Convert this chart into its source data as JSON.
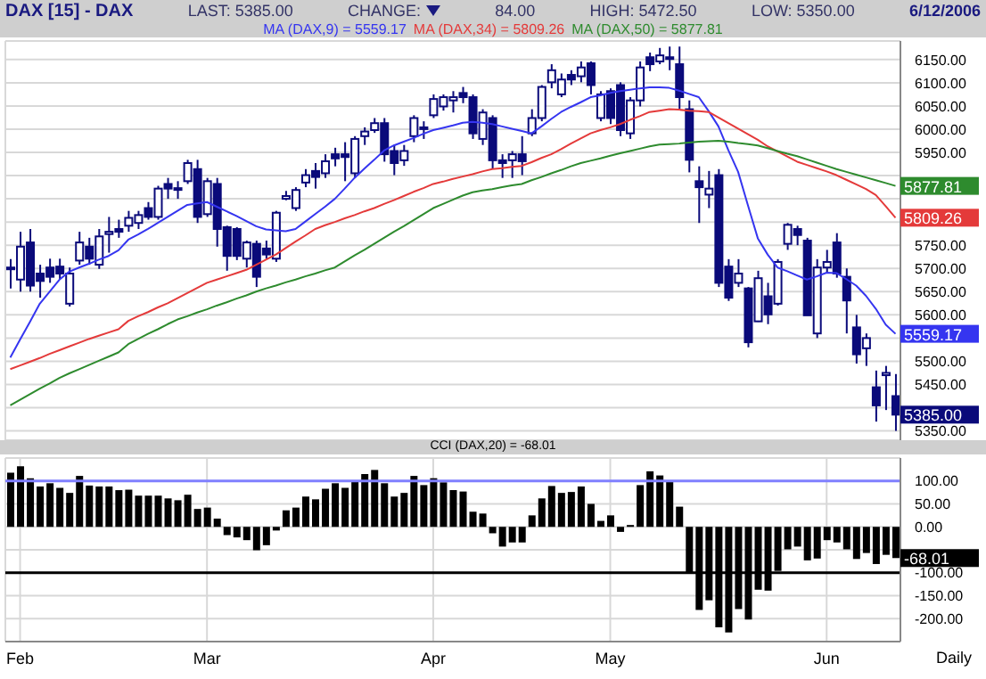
{
  "chart_data": [
    {
      "type": "candlestick",
      "title": "DAX [15] - DAX",
      "color": "#0a0a7a",
      "annotations": [
        "LAST: 5385.00",
        "CHANGE:",
        "84.00",
        "HIGH: 5472.50",
        "LOW: 5350.00",
        "6/12/2006",
        "5385.00"
      ],
      "categories": [
        null,
        null,
        null,
        null,
        null,
        null,
        null,
        null,
        null,
        null,
        null,
        null,
        null,
        null,
        null,
        null,
        null,
        null,
        null,
        null,
        null,
        null,
        null,
        null,
        null,
        null,
        null,
        null,
        null,
        null,
        null,
        null,
        null,
        null,
        null,
        null,
        null,
        null,
        null,
        null,
        null,
        null,
        null,
        null,
        null,
        null,
        null,
        null,
        null,
        null,
        null,
        null,
        null,
        null,
        null,
        null,
        null,
        null,
        null,
        null,
        null,
        null,
        null,
        null,
        null,
        null,
        null,
        null,
        null,
        null,
        null,
        null,
        null,
        null,
        null,
        null,
        null,
        null,
        null,
        null,
        null,
        null,
        null,
        null,
        null,
        null,
        null,
        null,
        null,
        null,
        null
      ],
      "ohlc": [
        [
          5700,
          5720,
          5657,
          5702
        ],
        [
          5676,
          5779,
          5650,
          5747
        ],
        [
          5756,
          5785,
          5650,
          5663
        ],
        [
          5689,
          5708,
          5637,
          5673
        ],
        [
          5702,
          5721,
          5669,
          5682
        ],
        [
          5704,
          5721,
          5676,
          5689
        ],
        [
          5624,
          5702,
          5618,
          5689
        ],
        [
          5717,
          5779,
          5708,
          5756
        ],
        [
          5747,
          5766,
          5708,
          5721
        ],
        [
          5708,
          5785,
          5699,
          5769
        ],
        [
          5774,
          5811,
          5734,
          5779
        ],
        [
          5785,
          5805,
          5766,
          5779
        ],
        [
          5792,
          5824,
          5779,
          5809
        ],
        [
          5798,
          5824,
          5785,
          5815
        ],
        [
          5830,
          5843,
          5805,
          5811
        ],
        [
          5811,
          5878,
          5805,
          5872
        ],
        [
          5882,
          5895,
          5850,
          5872
        ],
        [
          5873,
          5888,
          5850,
          5873
        ],
        [
          5888,
          5934,
          5882,
          5927
        ],
        [
          5914,
          5934,
          5798,
          5811
        ],
        [
          5817,
          5895,
          5811,
          5888
        ],
        [
          5882,
          5895,
          5747,
          5785
        ],
        [
          5789,
          5792,
          5695,
          5727
        ],
        [
          5785,
          5789,
          5718,
          5727
        ],
        [
          5721,
          5760,
          5702,
          5756
        ],
        [
          5753,
          5760,
          5660,
          5682
        ],
        [
          5743,
          5760,
          5721,
          5730
        ],
        [
          5721,
          5824,
          5714,
          5820
        ],
        [
          5850,
          5867,
          5847,
          5856
        ],
        [
          5830,
          5875,
          5824,
          5869
        ],
        [
          5885,
          5914,
          5875,
          5901
        ],
        [
          5910,
          5927,
          5872,
          5897
        ],
        [
          5905,
          5946,
          5895,
          5931
        ],
        [
          5946,
          5960,
          5920,
          5937
        ],
        [
          5946,
          5972,
          5888,
          5940
        ],
        [
          5905,
          5985,
          5895,
          5979
        ],
        [
          5985,
          6004,
          5966,
          5995
        ],
        [
          5998,
          6024,
          5992,
          6013
        ],
        [
          6013,
          6024,
          5930,
          5946
        ],
        [
          5953,
          5966,
          5901,
          5927
        ],
        [
          5933,
          5966,
          5921,
          5953
        ],
        [
          5985,
          6030,
          5972,
          6024
        ],
        [
          6004,
          6017,
          5979,
          6004
        ],
        [
          6030,
          6075,
          6024,
          6065
        ],
        [
          6049,
          6075,
          6040,
          6069
        ],
        [
          6062,
          6082,
          6036,
          6069
        ],
        [
          6078,
          6091,
          6056,
          6069
        ],
        [
          6069,
          6075,
          5979,
          5991
        ],
        [
          5979,
          6043,
          5966,
          6036
        ],
        [
          6024,
          6030,
          5914,
          5933
        ],
        [
          5933,
          5946,
          5895,
          5927
        ],
        [
          5933,
          5953,
          5895,
          5946
        ],
        [
          5946,
          5985,
          5901,
          5931
        ],
        [
          5991,
          6043,
          5985,
          6024
        ],
        [
          6024,
          6095,
          6017,
          6091
        ],
        [
          6101,
          6140,
          6088,
          6127
        ],
        [
          6075,
          6120,
          6069,
          6107
        ],
        [
          6117,
          6127,
          6095,
          6107
        ],
        [
          6114,
          6146,
          6101,
          6133
        ],
        [
          6142,
          6146,
          6075,
          6095
        ],
        [
          6024,
          6082,
          6017,
          6075
        ],
        [
          6082,
          6088,
          6011,
          6024
        ],
        [
          6095,
          6101,
          5985,
          5998
        ],
        [
          5991,
          6069,
          5979,
          6062
        ],
        [
          6062,
          6146,
          6049,
          6133
        ],
        [
          6155,
          6165,
          6125,
          6140
        ],
        [
          6146,
          6175,
          6140,
          6159
        ],
        [
          6153,
          6178,
          6127,
          6155
        ],
        [
          6140,
          6178,
          6043,
          6069
        ],
        [
          6043,
          6062,
          5907,
          5934
        ],
        [
          5888,
          5920,
          5798,
          5875
        ],
        [
          5859,
          5910,
          5830,
          5872
        ],
        [
          5901,
          5914,
          5660,
          5669
        ],
        [
          5704,
          5720,
          5630,
          5637
        ],
        [
          5669,
          5720,
          5660,
          5689
        ],
        [
          5657,
          5660,
          5530,
          5541
        ],
        [
          5586,
          5695,
          5585,
          5679
        ],
        [
          5640,
          5669,
          5580,
          5601
        ],
        [
          5624,
          5720,
          5620,
          5714
        ],
        [
          5753,
          5798,
          5740,
          5794
        ],
        [
          5785,
          5792,
          5750,
          5772
        ],
        [
          5760,
          5766,
          5599,
          5599
        ],
        [
          5560,
          5720,
          5550,
          5702
        ],
        [
          5702,
          5740,
          5690,
          5714
        ],
        [
          5756,
          5776,
          5680,
          5689
        ],
        [
          5682,
          5700,
          5560,
          5631
        ],
        [
          5573,
          5600,
          5495,
          5515
        ],
        [
          5528,
          5560,
          5490,
          5550
        ],
        [
          5444,
          5480,
          5370,
          5405
        ],
        [
          5470,
          5490,
          5395,
          5475
        ],
        [
          5425,
          5472.5,
          5350,
          5385
        ]
      ],
      "series": [
        {
          "type": "line",
          "name": "MA (DAX,9) = 5559.17",
          "color": "#3535f0",
          "values": [
            5508,
            5547,
            5585,
            5624,
            5650,
            5676,
            5693,
            5702,
            5710,
            5719,
            5727,
            5739,
            5762,
            5773,
            5785,
            5798,
            5811,
            5824,
            5837,
            5840,
            5843,
            5833,
            5823,
            5813,
            5802,
            5791,
            5784,
            5782,
            5780,
            5785,
            5801,
            5817,
            5833,
            5850,
            5872,
            5895,
            5915,
            5934,
            5954,
            5965,
            5973,
            5981,
            5990,
            5998,
            6003,
            6008,
            6014,
            6016,
            6014,
            6011,
            6006,
            6001,
            5996,
            5991,
            6006,
            6022,
            6037,
            6048,
            6058,
            6069,
            6073,
            6078,
            6082,
            6085,
            6088,
            6090,
            6090,
            6089,
            6083,
            6076,
            6069,
            6039,
            6006,
            5955,
            5908,
            5836,
            5765,
            5730,
            5702,
            5694,
            5685,
            5676,
            5683,
            5691,
            5690,
            5677,
            5663,
            5641,
            5613,
            5579,
            5559.17
          ],
          "value_labels": [
            null,
            null,
            null,
            null,
            null,
            null,
            null,
            null,
            null,
            null,
            null,
            null,
            null,
            null,
            null,
            null,
            null,
            null,
            null,
            null,
            null,
            null,
            null,
            null,
            null,
            null,
            null,
            null,
            null,
            null,
            null,
            null,
            null,
            null,
            null,
            null,
            null,
            null,
            null,
            null,
            null,
            null,
            null,
            null,
            null,
            null,
            null,
            null,
            null,
            null,
            null,
            null,
            null,
            null,
            null,
            null,
            null,
            null,
            null,
            null,
            null,
            null,
            null,
            null,
            null,
            null,
            null,
            null,
            null,
            null,
            null,
            null,
            null,
            null,
            null,
            null,
            null,
            null,
            null,
            null,
            null,
            null,
            null,
            null,
            null,
            null,
            null,
            null,
            null,
            null,
            "5559.17"
          ]
        },
        {
          "type": "line",
          "name": "MA (DAX,34) = 5809.26",
          "color": "#e43a3a",
          "values": [
            5483,
            5491,
            5499,
            5507,
            5516,
            5524,
            5532,
            5540,
            5548,
            5555,
            5562,
            5569,
            5587,
            5597,
            5606,
            5616,
            5625,
            5636,
            5647,
            5658,
            5669,
            5676,
            5683,
            5690,
            5697,
            5708,
            5719,
            5730,
            5744,
            5758,
            5771,
            5785,
            5793,
            5800,
            5808,
            5815,
            5823,
            5830,
            5839,
            5847,
            5856,
            5865,
            5873,
            5882,
            5887,
            5893,
            5898,
            5903,
            5909,
            5914,
            5916,
            5919,
            5921,
            5929,
            5938,
            5946,
            5957,
            5969,
            5980,
            5991,
            5998,
            6004,
            6011,
            6020,
            6028,
            6037,
            6040,
            6043,
            6042,
            6040,
            6039,
            6037,
            6025,
            6013,
            6001,
            5989,
            5977,
            5963,
            5952,
            5941,
            5930,
            5923,
            5916,
            5909,
            5901,
            5891,
            5881,
            5871,
            5858,
            5834,
            5809.26
          ],
          "value_labels": [
            null,
            null,
            null,
            null,
            null,
            null,
            null,
            null,
            null,
            null,
            null,
            null,
            null,
            null,
            null,
            null,
            null,
            null,
            null,
            null,
            null,
            null,
            null,
            null,
            null,
            null,
            null,
            null,
            null,
            null,
            null,
            null,
            null,
            null,
            null,
            null,
            null,
            null,
            null,
            null,
            null,
            null,
            null,
            null,
            null,
            null,
            null,
            null,
            null,
            null,
            null,
            null,
            null,
            null,
            null,
            null,
            null,
            null,
            null,
            null,
            null,
            null,
            null,
            null,
            null,
            null,
            null,
            null,
            null,
            null,
            null,
            null,
            null,
            null,
            null,
            null,
            null,
            null,
            null,
            null,
            null,
            null,
            null,
            null,
            null,
            null,
            null,
            null,
            null,
            null,
            "5809.26"
          ]
        },
        {
          "type": "line",
          "name": "MA (DAX,50) = 5877.81",
          "color": "#2e8b2e",
          "values": [
            5405,
            5417,
            5429,
            5441,
            5452,
            5464,
            5474,
            5483,
            5492,
            5501,
            5510,
            5519,
            5537,
            5548,
            5559,
            5569,
            5580,
            5590,
            5597,
            5605,
            5612,
            5620,
            5627,
            5635,
            5642,
            5650,
            5657,
            5663,
            5670,
            5676,
            5683,
            5689,
            5696,
            5702,
            5715,
            5728,
            5740,
            5753,
            5766,
            5779,
            5791,
            5804,
            5817,
            5830,
            5839,
            5848,
            5857,
            5864,
            5868,
            5871,
            5875,
            5879,
            5882,
            5890,
            5897,
            5905,
            5912,
            5920,
            5927,
            5932,
            5937,
            5943,
            5948,
            5953,
            5958,
            5963,
            5967,
            5968,
            5969,
            5971,
            5973,
            5974,
            5975,
            5973,
            5970,
            5968,
            5965,
            5959,
            5953,
            5947,
            5942,
            5935,
            5928,
            5921,
            5914,
            5908,
            5902,
            5896,
            5890,
            5884,
            5877.81
          ],
          "value_labels": [
            null,
            null,
            null,
            null,
            null,
            null,
            null,
            null,
            null,
            null,
            null,
            null,
            null,
            null,
            null,
            null,
            null,
            null,
            null,
            null,
            null,
            null,
            null,
            null,
            null,
            null,
            null,
            null,
            null,
            null,
            null,
            null,
            null,
            null,
            null,
            null,
            null,
            null,
            null,
            null,
            null,
            null,
            null,
            null,
            null,
            null,
            null,
            null,
            null,
            null,
            null,
            null,
            null,
            null,
            null,
            null,
            null,
            null,
            null,
            null,
            null,
            null,
            null,
            null,
            null,
            null,
            null,
            null,
            null,
            null,
            null,
            null,
            null,
            null,
            null,
            null,
            null,
            null,
            null,
            null,
            null,
            null,
            null,
            null,
            null,
            null,
            null,
            null,
            null,
            null,
            "5877.81"
          ]
        }
      ],
      "ylim": [
        5330,
        6190
      ],
      "yticks": [
        {
          "value": 5350,
          "label": "5350.00"
        },
        {
          "value": 5400,
          "label": null
        },
        {
          "value": 5450,
          "label": "5450.00"
        },
        {
          "value": 5500,
          "label": "5500.00"
        },
        {
          "value": 5550,
          "label": null
        },
        {
          "value": 5600,
          "label": "5600.00"
        },
        {
          "value": 5650,
          "label": "5650.00"
        },
        {
          "value": 5700,
          "label": "5700.00"
        },
        {
          "value": 5750,
          "label": "5750.00"
        },
        {
          "value": 5800,
          "label": null
        },
        {
          "value": 5850,
          "label": null
        },
        {
          "value": 5900,
          "label": null
        },
        {
          "value": 5950,
          "label": "5950.00"
        },
        {
          "value": 6000,
          "label": "6000.00"
        },
        {
          "value": 6050,
          "label": "6050.00"
        },
        {
          "value": 6100,
          "label": "6100.00"
        },
        {
          "value": 6150,
          "label": "6150.00"
        }
      ],
      "grid": true,
      "legend": "top",
      "tick_labels": "y"
    },
    {
      "type": "bar",
      "title": "CCI (DAX,20) = -68.01",
      "color": "#000000",
      "annotations": [
        "Daily",
        "-68.01"
      ],
      "categories": [
        null,
        "Feb",
        null,
        null,
        null,
        null,
        null,
        null,
        null,
        null,
        null,
        null,
        null,
        null,
        null,
        null,
        null,
        null,
        null,
        null,
        "Mar",
        null,
        null,
        null,
        null,
        null,
        null,
        null,
        null,
        null,
        null,
        null,
        null,
        null,
        null,
        null,
        null,
        null,
        null,
        null,
        null,
        null,
        null,
        "Apr",
        null,
        null,
        null,
        null,
        null,
        null,
        null,
        null,
        null,
        null,
        null,
        null,
        null,
        null,
        null,
        null,
        null,
        "May",
        null,
        null,
        null,
        null,
        null,
        null,
        null,
        null,
        null,
        null,
        null,
        null,
        null,
        null,
        null,
        null,
        null,
        null,
        null,
        null,
        null,
        "Jun",
        null,
        null,
        null,
        null,
        null,
        null,
        null
      ],
      "values": [
        118,
        132,
        106,
        88,
        95,
        85,
        74,
        111,
        90,
        88,
        88,
        80,
        81,
        68,
        68,
        68,
        62,
        58,
        70,
        39,
        42,
        18,
        -18,
        -23,
        -29,
        -51,
        -40,
        -8,
        36,
        42,
        66,
        60,
        83,
        95,
        85,
        101,
        115,
        124,
        95,
        66,
        74,
        111,
        91,
        106,
        97,
        80,
        77,
        33,
        29,
        -14,
        -43,
        -34,
        -34,
        25,
        62,
        89,
        74,
        76,
        88,
        50,
        13,
        25,
        -11,
        4,
        91,
        121,
        112,
        101,
        44,
        -102,
        -181,
        -160,
        -219,
        -230,
        -179,
        -202,
        -137,
        -139,
        -96,
        -49,
        -43,
        -73,
        -69,
        -29,
        -34,
        -49,
        -70,
        -57,
        -81,
        -61,
        -68.01
      ],
      "ref_lines": [
        {
          "axis": "y",
          "value": 100,
          "color": "#8080ff"
        },
        {
          "axis": "y",
          "value": -100,
          "color": "#000000"
        }
      ],
      "ylim": [
        -250,
        150
      ],
      "yticks": [
        {
          "value": -200,
          "label": "-200.00"
        },
        {
          "value": -150,
          "label": "-150.00"
        },
        {
          "value": -100,
          "label": "-100.00"
        },
        {
          "value": -50,
          "label": null
        },
        {
          "value": 0,
          "label": "0.00"
        },
        {
          "value": 50,
          "label": "50.00"
        },
        {
          "value": 100,
          "label": "100.00"
        }
      ],
      "grid": true
    }
  ]
}
